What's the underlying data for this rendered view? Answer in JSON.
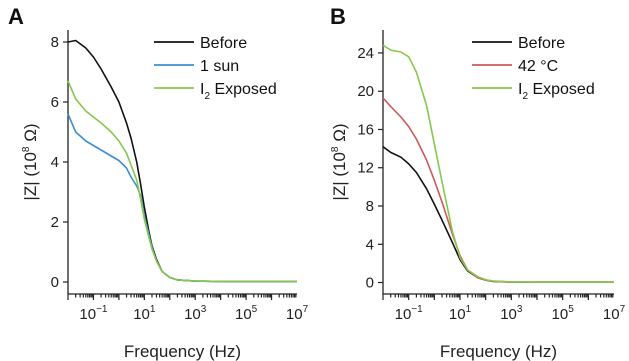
{
  "chart_data": [
    {
      "panel": "A",
      "type": "line",
      "xscale": "log",
      "xlabel": "Frequency (Hz)",
      "xlim": [
        0.01,
        10000000
      ],
      "xticks": [
        {
          "value": 0.1,
          "label": "10",
          "exp": "−1"
        },
        {
          "value": 10,
          "label": "10",
          "exp": "1"
        },
        {
          "value": 1000,
          "label": "10",
          "exp": "3"
        },
        {
          "value": 100000,
          "label": "10",
          "exp": "5"
        },
        {
          "value": 10000000,
          "label": "10",
          "exp": "7"
        }
      ],
      "ylabel": "|Z| (10⁸ Ω)",
      "ylabel_parts": {
        "pre": "|Z| (10",
        "sup": "8",
        "post": " Ω)"
      },
      "ylim": [
        -0.4,
        8.4
      ],
      "yticks": [
        0,
        2,
        4,
        6,
        8
      ],
      "legend_position": "top-right",
      "series": [
        {
          "name": "Before",
          "color": "#111111",
          "x": [
            0.01,
            0.02,
            0.05,
            0.1,
            0.2,
            0.5,
            1,
            2,
            3,
            5,
            7,
            10,
            15,
            20,
            30,
            50,
            100,
            200,
            1000,
            10000,
            100000,
            1000000,
            10000000
          ],
          "y": [
            8.0,
            8.05,
            7.8,
            7.5,
            7.1,
            6.5,
            6.0,
            5.3,
            4.8,
            4.0,
            3.3,
            2.5,
            1.7,
            1.2,
            0.75,
            0.35,
            0.15,
            0.07,
            0.03,
            0.02,
            0.02,
            0.02,
            0.02
          ]
        },
        {
          "name": "1 sun",
          "color": "#3b8fd0",
          "x": [
            0.01,
            0.02,
            0.05,
            0.1,
            0.2,
            0.5,
            1,
            2,
            3,
            5,
            7,
            10,
            15,
            20,
            30,
            50,
            100,
            200,
            1000,
            10000,
            100000,
            1000000,
            10000000
          ],
          "y": [
            5.6,
            5.0,
            4.7,
            4.55,
            4.4,
            4.2,
            4.05,
            3.8,
            3.5,
            3.2,
            2.9,
            2.2,
            1.6,
            1.15,
            0.7,
            0.35,
            0.15,
            0.07,
            0.03,
            0.02,
            0.02,
            0.02,
            0.02
          ]
        },
        {
          "name": "I₂ Exposed",
          "name_parts": {
            "pre": "I",
            "sub": "2",
            "post": " Exposed"
          },
          "color": "#86c84a",
          "x": [
            0.01,
            0.02,
            0.05,
            0.1,
            0.2,
            0.5,
            1,
            2,
            3,
            5,
            7,
            10,
            15,
            20,
            30,
            50,
            100,
            200,
            1000,
            10000,
            100000,
            1000000,
            10000000
          ],
          "y": [
            6.7,
            6.1,
            5.7,
            5.5,
            5.3,
            5.0,
            4.7,
            4.3,
            3.9,
            3.4,
            2.8,
            2.1,
            1.5,
            1.1,
            0.7,
            0.35,
            0.15,
            0.07,
            0.03,
            0.02,
            0.02,
            0.02,
            0.02
          ]
        }
      ]
    },
    {
      "panel": "B",
      "type": "line",
      "xscale": "log",
      "xlabel": "Frequency (Hz)",
      "xlim": [
        0.01,
        10000000
      ],
      "xticks": [
        {
          "value": 0.1,
          "label": "10",
          "exp": "−1"
        },
        {
          "value": 10,
          "label": "10",
          "exp": "1"
        },
        {
          "value": 1000,
          "label": "10",
          "exp": "3"
        },
        {
          "value": 100000,
          "label": "10",
          "exp": "5"
        },
        {
          "value": 10000000,
          "label": "10",
          "exp": "7"
        }
      ],
      "ylabel": "|Z| (10⁸ Ω)",
      "ylabel_parts": {
        "pre": "|Z| (10",
        "sup": "8",
        "post": " Ω)"
      },
      "ylim": [
        -1.2,
        26.4
      ],
      "yticks": [
        0,
        4,
        8,
        12,
        16,
        20,
        24
      ],
      "legend_position": "top-right",
      "series": [
        {
          "name": "Before",
          "color": "#111111",
          "x": [
            0.01,
            0.02,
            0.05,
            0.1,
            0.2,
            0.5,
            1,
            2,
            5,
            10,
            20,
            50,
            100,
            200,
            1000,
            10000,
            100000,
            1000000,
            10000000
          ],
          "y": [
            14.2,
            13.6,
            13.1,
            12.4,
            11.5,
            9.8,
            8.2,
            6.5,
            4.2,
            2.4,
            1.2,
            0.5,
            0.25,
            0.12,
            0.05,
            0.03,
            0.03,
            0.03,
            0.03
          ]
        },
        {
          "name": "42 °C",
          "color": "#cc5a5a",
          "x": [
            0.01,
            0.02,
            0.05,
            0.1,
            0.2,
            0.5,
            1,
            2,
            5,
            10,
            20,
            50,
            100,
            200,
            1000,
            10000,
            100000,
            1000000,
            10000000
          ],
          "y": [
            19.3,
            18.4,
            17.3,
            16.3,
            15.0,
            12.8,
            10.7,
            8.4,
            5.1,
            2.8,
            1.3,
            0.5,
            0.25,
            0.12,
            0.05,
            0.03,
            0.03,
            0.03,
            0.03
          ]
        },
        {
          "name": "I₂ Exposed",
          "name_parts": {
            "pre": "I",
            "sub": "2",
            "post": " Exposed"
          },
          "color": "#86c84a",
          "x": [
            0.01,
            0.02,
            0.05,
            0.1,
            0.2,
            0.5,
            1,
            2,
            5,
            10,
            20,
            50,
            100,
            200,
            1000,
            10000,
            100000,
            1000000,
            10000000
          ],
          "y": [
            24.8,
            24.3,
            24.1,
            23.6,
            22.0,
            18.5,
            14.5,
            10.5,
            5.4,
            2.6,
            1.3,
            0.6,
            0.3,
            0.15,
            0.06,
            0.04,
            0.04,
            0.04,
            0.04
          ]
        }
      ]
    }
  ]
}
